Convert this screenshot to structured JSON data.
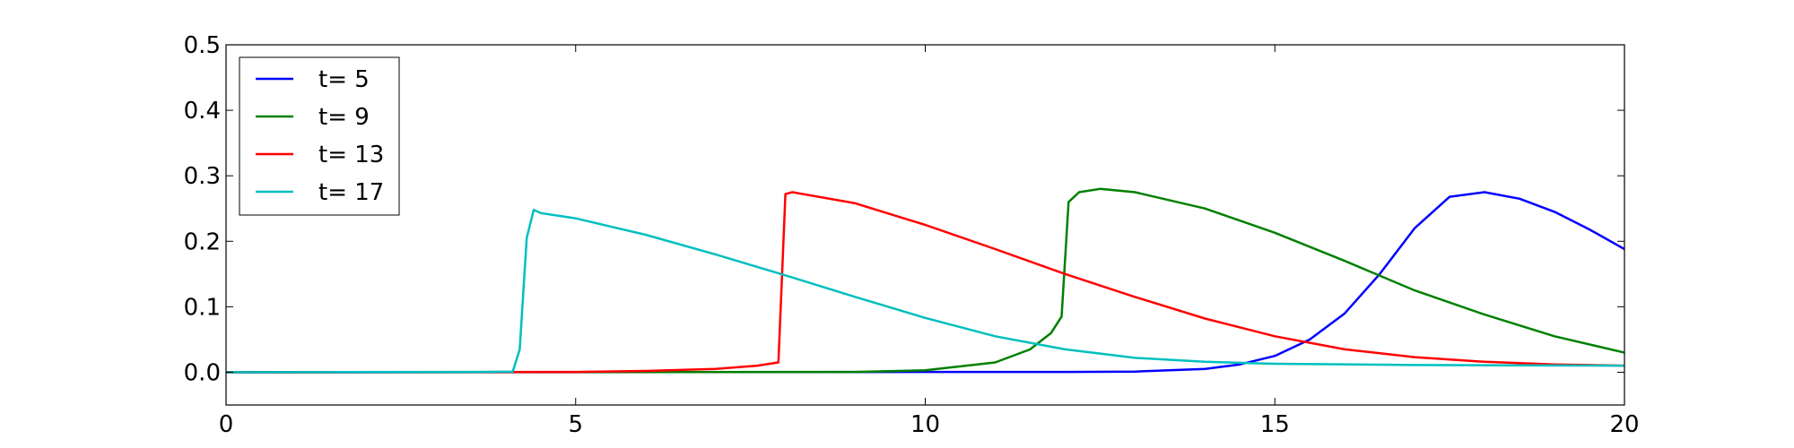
{
  "chart_data": {
    "type": "line",
    "xlim": [
      0,
      20
    ],
    "ylim": [
      -0.05,
      0.5
    ],
    "xticks": [
      0,
      5,
      10,
      15,
      20
    ],
    "yticks": [
      0.0,
      0.1,
      0.2,
      0.3,
      0.4,
      0.5
    ],
    "xtick_labels": [
      "0",
      "5",
      "10",
      "15",
      "20"
    ],
    "ytick_labels": [
      "0.0",
      "0.1",
      "0.2",
      "0.3",
      "0.4",
      "0.5"
    ],
    "grid": false,
    "legend_position": "top-left",
    "series": [
      {
        "name": "t= 5",
        "color": "#0000ff",
        "points": [
          [
            0,
            0.0
          ],
          [
            12,
            0.0005
          ],
          [
            13,
            0.001
          ],
          [
            14,
            0.005
          ],
          [
            14.5,
            0.012
          ],
          [
            15,
            0.025
          ],
          [
            15.5,
            0.05
          ],
          [
            16,
            0.09
          ],
          [
            16.5,
            0.15
          ],
          [
            17,
            0.22
          ],
          [
            17.5,
            0.268
          ],
          [
            18,
            0.275
          ],
          [
            18.5,
            0.265
          ],
          [
            19,
            0.245
          ],
          [
            19.5,
            0.218
          ],
          [
            20,
            0.188
          ]
        ]
      },
      {
        "name": "t= 9",
        "color": "#008000",
        "points": [
          [
            0,
            0.0
          ],
          [
            9,
            0.0005
          ],
          [
            10,
            0.003
          ],
          [
            11,
            0.015
          ],
          [
            11.5,
            0.035
          ],
          [
            11.8,
            0.06
          ],
          [
            11.95,
            0.085
          ],
          [
            12.05,
            0.26
          ],
          [
            12.2,
            0.275
          ],
          [
            12.5,
            0.28
          ],
          [
            13,
            0.275
          ],
          [
            14,
            0.25
          ],
          [
            15,
            0.213
          ],
          [
            16,
            0.17
          ],
          [
            17,
            0.125
          ],
          [
            18,
            0.088
          ],
          [
            19,
            0.055
          ],
          [
            20,
            0.03
          ]
        ]
      },
      {
        "name": "t= 13",
        "color": "#ff0000",
        "points": [
          [
            0,
            0.0
          ],
          [
            5,
            0.0005
          ],
          [
            6,
            0.002
          ],
          [
            7,
            0.005
          ],
          [
            7.6,
            0.01
          ],
          [
            7.9,
            0.015
          ],
          [
            8.0,
            0.272
          ],
          [
            8.1,
            0.275
          ],
          [
            9,
            0.258
          ],
          [
            10,
            0.225
          ],
          [
            11,
            0.188
          ],
          [
            12,
            0.15
          ],
          [
            13,
            0.115
          ],
          [
            14,
            0.082
          ],
          [
            15,
            0.055
          ],
          [
            16,
            0.035
          ],
          [
            17,
            0.023
          ],
          [
            18,
            0.016
          ],
          [
            19,
            0.012
          ],
          [
            20,
            0.01
          ]
        ]
      },
      {
        "name": "t= 17",
        "color": "#00bfbf",
        "points": [
          [
            0,
            0.0
          ],
          [
            3.5,
            0.0005
          ],
          [
            4.1,
            0.001
          ],
          [
            4.2,
            0.035
          ],
          [
            4.3,
            0.205
          ],
          [
            4.4,
            0.248
          ],
          [
            4.5,
            0.243
          ],
          [
            5,
            0.235
          ],
          [
            6,
            0.21
          ],
          [
            7,
            0.18
          ],
          [
            8,
            0.148
          ],
          [
            9,
            0.115
          ],
          [
            10,
            0.083
          ],
          [
            11,
            0.055
          ],
          [
            12,
            0.035
          ],
          [
            13,
            0.022
          ],
          [
            14,
            0.016
          ],
          [
            15,
            0.013
          ],
          [
            17,
            0.011
          ],
          [
            20,
            0.01
          ]
        ]
      }
    ]
  }
}
